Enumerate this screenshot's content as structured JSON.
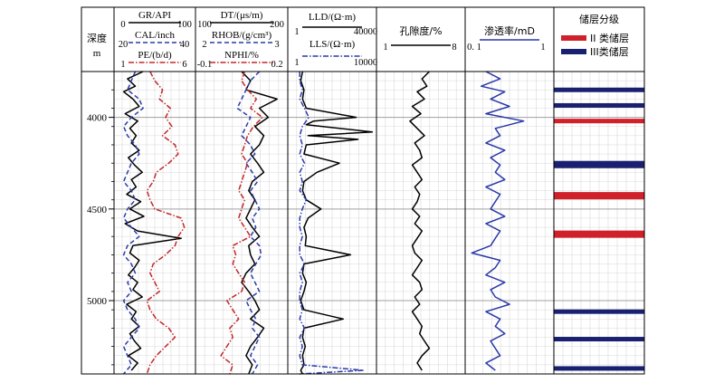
{
  "colors": {
    "black": "#000000",
    "red": "#c0282a",
    "blue": "#2a3aa8",
    "navy": "#1a2070",
    "grid": "#d8d8d8",
    "major": "#a0a0a0"
  },
  "chart_data": {
    "type": "line",
    "depth_axis": {
      "label_top": "深度",
      "label_bottom": "m",
      "range": [
        3750,
        5400
      ],
      "major_ticks": [
        4000,
        4500,
        5000
      ]
    },
    "tracks": [
      {
        "id": "track1",
        "curves": [
          {
            "name": "GR/API",
            "min": "0",
            "max": "100",
            "color": "#000000",
            "style": "solid",
            "lo": 0,
            "hi": 100
          },
          {
            "name": "CAL/inch",
            "min": "20",
            "max": "40",
            "color": "#2a3aa8",
            "style": "dashed",
            "lo": 20,
            "hi": 40
          },
          {
            "name": "PE/(b/d)",
            "min": "1",
            "max": "6",
            "color": "#c0282a",
            "style": "dashdot",
            "lo": 1,
            "hi": 6
          }
        ]
      },
      {
        "id": "track2",
        "curves": [
          {
            "name": "DT/(μs/m)",
            "min": "100",
            "max": "200",
            "color": "#000000",
            "style": "solid",
            "lo": 100,
            "hi": 200
          },
          {
            "name": "RHOB/(g/cm³)",
            "min": "2",
            "max": "3",
            "color": "#2a3aa8",
            "style": "dashed",
            "lo": 2,
            "hi": 3
          },
          {
            "name": "NPHI/%",
            "min": "-0.1",
            "max": "0.2",
            "color": "#c0282a",
            "style": "dashdot",
            "lo": -0.1,
            "hi": 0.2
          }
        ]
      },
      {
        "id": "track3",
        "curves": [
          {
            "name": "LLD/(Ω·m)",
            "min": "1",
            "max": "40000",
            "color": "#000000",
            "style": "solid",
            "log": true,
            "lo": 1,
            "hi": 40000
          },
          {
            "name": "LLS/(Ω·m)",
            "min": "1",
            "max": "10000",
            "color": "#2a3aa8",
            "style": "dashdot",
            "log": true,
            "lo": 1,
            "hi": 10000
          }
        ]
      },
      {
        "id": "track4",
        "curves": [
          {
            "name": "孔隙度/%",
            "min": "1",
            "max": "8",
            "color": "#000000",
            "style": "solid",
            "lo": 1,
            "hi": 8
          }
        ]
      },
      {
        "id": "track5",
        "curves": [
          {
            "name": "渗透率/mD",
            "min": "0. 1",
            "max": "1",
            "color": "#2a3aa8",
            "style": "solid",
            "lo": 0.1,
            "hi": 1
          }
        ]
      }
    ],
    "reservoir": {
      "title": "储层分级",
      "legend": [
        {
          "label": "II 类储层",
          "color": "#d0202a"
        },
        {
          "label": "III类储层",
          "color": "#1a2070"
        }
      ],
      "layers": [
        {
          "depth": 3850,
          "class": "III"
        },
        {
          "depth": 3935,
          "class": "III"
        },
        {
          "depth": 4020,
          "class": "II"
        },
        {
          "depth": 4250,
          "class": "III"
        },
        {
          "depth": 4265,
          "class": "III"
        },
        {
          "depth": 4420,
          "class": "II"
        },
        {
          "depth": 4435,
          "class": "II"
        },
        {
          "depth": 4630,
          "class": "II"
        },
        {
          "depth": 4645,
          "class": "II"
        },
        {
          "depth": 5060,
          "class": "III"
        },
        {
          "depth": 5210,
          "class": "III"
        },
        {
          "depth": 5370,
          "class": "III"
        }
      ]
    },
    "series": [
      {
        "name": "GR/API",
        "depth": [
          3750,
          3790,
          3830,
          3860,
          3900,
          3940,
          3980,
          4020,
          4060,
          4100,
          4140,
          4180,
          4220,
          4260,
          4300,
          4340,
          4380,
          4420,
          4460,
          4500,
          4540,
          4580,
          4620,
          4660,
          4700,
          4740,
          4780,
          4820,
          4860,
          4900,
          4940,
          4980,
          5020,
          5060,
          5100,
          5140,
          5180,
          5220,
          5260,
          5300,
          5340,
          5380
        ],
        "values": [
          35,
          15,
          25,
          10,
          22,
          30,
          12,
          28,
          18,
          26,
          20,
          30,
          16,
          24,
          34,
          20,
          26,
          14,
          32,
          18,
          36,
          12,
          28,
          84,
          22,
          18,
          30,
          24,
          16,
          28,
          22,
          34,
          14,
          26,
          20,
          30,
          18,
          24,
          32,
          16,
          28,
          20
        ]
      },
      {
        "name": "CAL/inch",
        "depth": [
          3750,
          3800,
          3850,
          3900,
          3950,
          4000,
          4050,
          4100,
          4150,
          4200,
          4250,
          4300,
          4350,
          4400,
          4450,
          4500,
          4550,
          4600,
          4650,
          4700,
          4750,
          4800,
          4850,
          4900,
          4950,
          5000,
          5050,
          5100,
          5150,
          5200,
          5250,
          5300,
          5350,
          5400
        ],
        "values": [
          25,
          24,
          23,
          26,
          27,
          24,
          22,
          23,
          25,
          26,
          24,
          23,
          22,
          24,
          25,
          23,
          22,
          24,
          26,
          23,
          22,
          24,
          25,
          23,
          24,
          22,
          23,
          25,
          26,
          24,
          22,
          23,
          24,
          22
        ]
      },
      {
        "name": "PE/(b/d)",
        "depth": [
          3750,
          3800,
          3850,
          3900,
          3950,
          4000,
          4050,
          4100,
          4150,
          4200,
          4250,
          4300,
          4350,
          4400,
          4450,
          4500,
          4550,
          4600,
          4650,
          4700,
          4750,
          4800,
          4850,
          4900,
          4950,
          5000,
          5050,
          5100,
          5150,
          5200,
          5250,
          5300,
          5350,
          5400
        ],
        "values": [
          3.2,
          3.5,
          4.0,
          3.8,
          4.5,
          4.2,
          4.6,
          4.0,
          4.8,
          5.0,
          4.4,
          3.6,
          3.4,
          3.0,
          3.2,
          3.5,
          5.2,
          5.4,
          5.0,
          4.8,
          4.2,
          3.4,
          3.2,
          3.5,
          3.8,
          3.0,
          3.2,
          3.6,
          4.4,
          4.8,
          4.2,
          3.6,
          3.2,
          3.0
        ]
      },
      {
        "name": "DT/(μs/m)",
        "depth": [
          3750,
          3800,
          3850,
          3900,
          3950,
          4000,
          4050,
          4100,
          4150,
          4200,
          4250,
          4300,
          4350,
          4400,
          4450,
          4500,
          4550,
          4600,
          4650,
          4700,
          4750,
          4800,
          4850,
          4900,
          4950,
          5000,
          5050,
          5100,
          5150,
          5200,
          5250,
          5300,
          5350,
          5400
        ],
        "values": [
          150,
          160,
          155,
          190,
          170,
          180,
          165,
          175,
          170,
          160,
          168,
          175,
          162,
          158,
          165,
          160,
          155,
          162,
          170,
          158,
          160,
          165,
          155,
          150,
          158,
          165,
          170,
          160,
          175,
          168,
          160,
          155,
          162,
          158
        ]
      },
      {
        "name": "RHOB/(g/cm³)",
        "depth": [
          3750,
          3800,
          3850,
          3900,
          3950,
          4000,
          4050,
          4100,
          4150,
          4200,
          4250,
          4300,
          4350,
          4400,
          4450,
          4500,
          4550,
          4600,
          4650,
          4700,
          4750,
          4800,
          4850,
          4900,
          4950,
          5000,
          5050,
          5100,
          5150,
          5200,
          5250,
          5300,
          5350,
          5400
        ],
        "values": [
          2.7,
          2.6,
          2.55,
          2.5,
          2.45,
          2.6,
          2.55,
          2.5,
          2.6,
          2.65,
          2.55,
          2.62,
          2.68,
          2.6,
          2.65,
          2.7,
          2.62,
          2.66,
          2.6,
          2.7,
          2.72,
          2.66,
          2.6,
          2.65,
          2.7,
          2.55,
          2.6,
          2.66,
          2.62,
          2.7,
          2.65,
          2.6,
          2.68,
          2.62
        ]
      },
      {
        "name": "NPHI/%",
        "depth": [
          3750,
          3800,
          3850,
          3900,
          3950,
          4000,
          4050,
          4100,
          4150,
          4200,
          4250,
          4300,
          4350,
          4400,
          4450,
          4500,
          4550,
          4600,
          4650,
          4700,
          4750,
          4800,
          4850,
          4900,
          4950,
          5000,
          5050,
          5100,
          5150,
          5200,
          5250,
          5300,
          5350,
          5400
        ],
        "values": [
          0.06,
          0.05,
          0.07,
          0.1,
          0.08,
          0.12,
          0.09,
          0.07,
          0.06,
          0.05,
          0.07,
          0.06,
          0.05,
          0.04,
          0.06,
          0.05,
          0.04,
          0.06,
          0.08,
          0.02,
          0.03,
          0.02,
          0.04,
          0.06,
          0.05,
          0.0,
          0.02,
          0.04,
          0.01,
          0.02,
          0.0,
          -0.02,
          0.02,
          0.01
        ]
      },
      {
        "name": "LLD/(Ω·m)",
        "depth": [
          3750,
          3800,
          3850,
          3900,
          3950,
          4000,
          4020,
          4040,
          4080,
          4100,
          4120,
          4150,
          4200,
          4250,
          4300,
          4350,
          4400,
          4450,
          4500,
          4550,
          4600,
          4650,
          4700,
          4750,
          4800,
          4850,
          4900,
          4950,
          5000,
          5050,
          5100,
          5150,
          5200,
          5250,
          5300,
          5350,
          5380,
          5400
        ],
        "values": [
          5,
          4,
          6,
          5,
          8,
          4000,
          20,
          8,
          30000,
          10,
          5000,
          8,
          6,
          500,
          30,
          6,
          5,
          8,
          50,
          10,
          6,
          8,
          7,
          2000,
          6,
          5,
          8,
          6,
          4,
          6,
          800,
          6,
          5,
          7,
          5,
          6,
          4,
          5
        ]
      },
      {
        "name": "LLS/(Ω·m)",
        "depth": [
          3750,
          3800,
          3850,
          3900,
          3950,
          4000,
          4050,
          4100,
          4150,
          4200,
          4250,
          4300,
          4350,
          4400,
          4450,
          4500,
          4550,
          4600,
          4650,
          4700,
          4750,
          4800,
          4850,
          4900,
          4950,
          5000,
          5050,
          5100,
          5150,
          5200,
          5250,
          5300,
          5350,
          5380,
          5400
        ],
        "values": [
          3,
          3,
          4,
          3,
          5,
          8,
          4,
          3,
          4,
          3,
          5,
          3,
          4,
          3,
          6,
          4,
          3,
          3,
          4,
          3,
          3,
          5,
          3,
          4,
          3,
          3,
          4,
          3,
          5,
          3,
          4,
          3,
          4,
          3000,
          3
        ]
      },
      {
        "name": "孔隙度/%",
        "depth": [
          3750,
          3790,
          3830,
          3860,
          3900,
          3940,
          3980,
          4020,
          4060,
          4100,
          4140,
          4180,
          4220,
          4260,
          4300,
          4340,
          4380,
          4420,
          4460,
          4500,
          4540,
          4580,
          4620,
          4660,
          4700,
          4740,
          4780,
          4820,
          4860,
          4900,
          4940,
          4980,
          5020,
          5060,
          5100,
          5140,
          5180,
          5220,
          5260,
          5300,
          5340,
          5380
        ],
        "values": [
          5.2,
          4.6,
          5.0,
          4.2,
          4.8,
          3.8,
          4.5,
          3.6,
          4.2,
          4.8,
          4.0,
          4.4,
          4.6,
          3.8,
          4.2,
          4.6,
          4.0,
          4.4,
          4.2,
          3.8,
          4.4,
          4.0,
          4.6,
          4.2,
          3.8,
          4.0,
          4.6,
          4.2,
          3.8,
          4.4,
          4.6,
          4.0,
          4.4,
          3.8,
          4.2,
          4.6,
          4.4,
          4.8,
          5.2,
          4.6,
          4.2,
          4.6
        ]
      },
      {
        "name": "渗透率/mD",
        "depth": [
          3750,
          3790,
          3830,
          3860,
          3900,
          3940,
          3980,
          4020,
          4060,
          4100,
          4140,
          4180,
          4220,
          4260,
          4300,
          4340,
          4380,
          4420,
          4460,
          4500,
          4540,
          4580,
          4620,
          4660,
          4700,
          4740,
          4780,
          4820,
          4860,
          4900,
          4940,
          4980,
          5020,
          5060,
          5100,
          5140,
          5180,
          5220,
          5260,
          5300,
          5340,
          5380
        ],
        "values": [
          0.3,
          0.45,
          0.25,
          0.5,
          0.35,
          0.55,
          0.3,
          0.7,
          0.4,
          0.45,
          0.3,
          0.5,
          0.35,
          0.45,
          0.4,
          0.5,
          0.3,
          0.45,
          0.4,
          0.35,
          0.5,
          0.3,
          0.45,
          0.4,
          0.35,
          0.15,
          0.45,
          0.4,
          0.3,
          0.5,
          0.35,
          0.4,
          0.55,
          0.3,
          0.45,
          0.4,
          0.5,
          0.35,
          0.4,
          0.45,
          0.3,
          0.4
        ]
      }
    ]
  }
}
